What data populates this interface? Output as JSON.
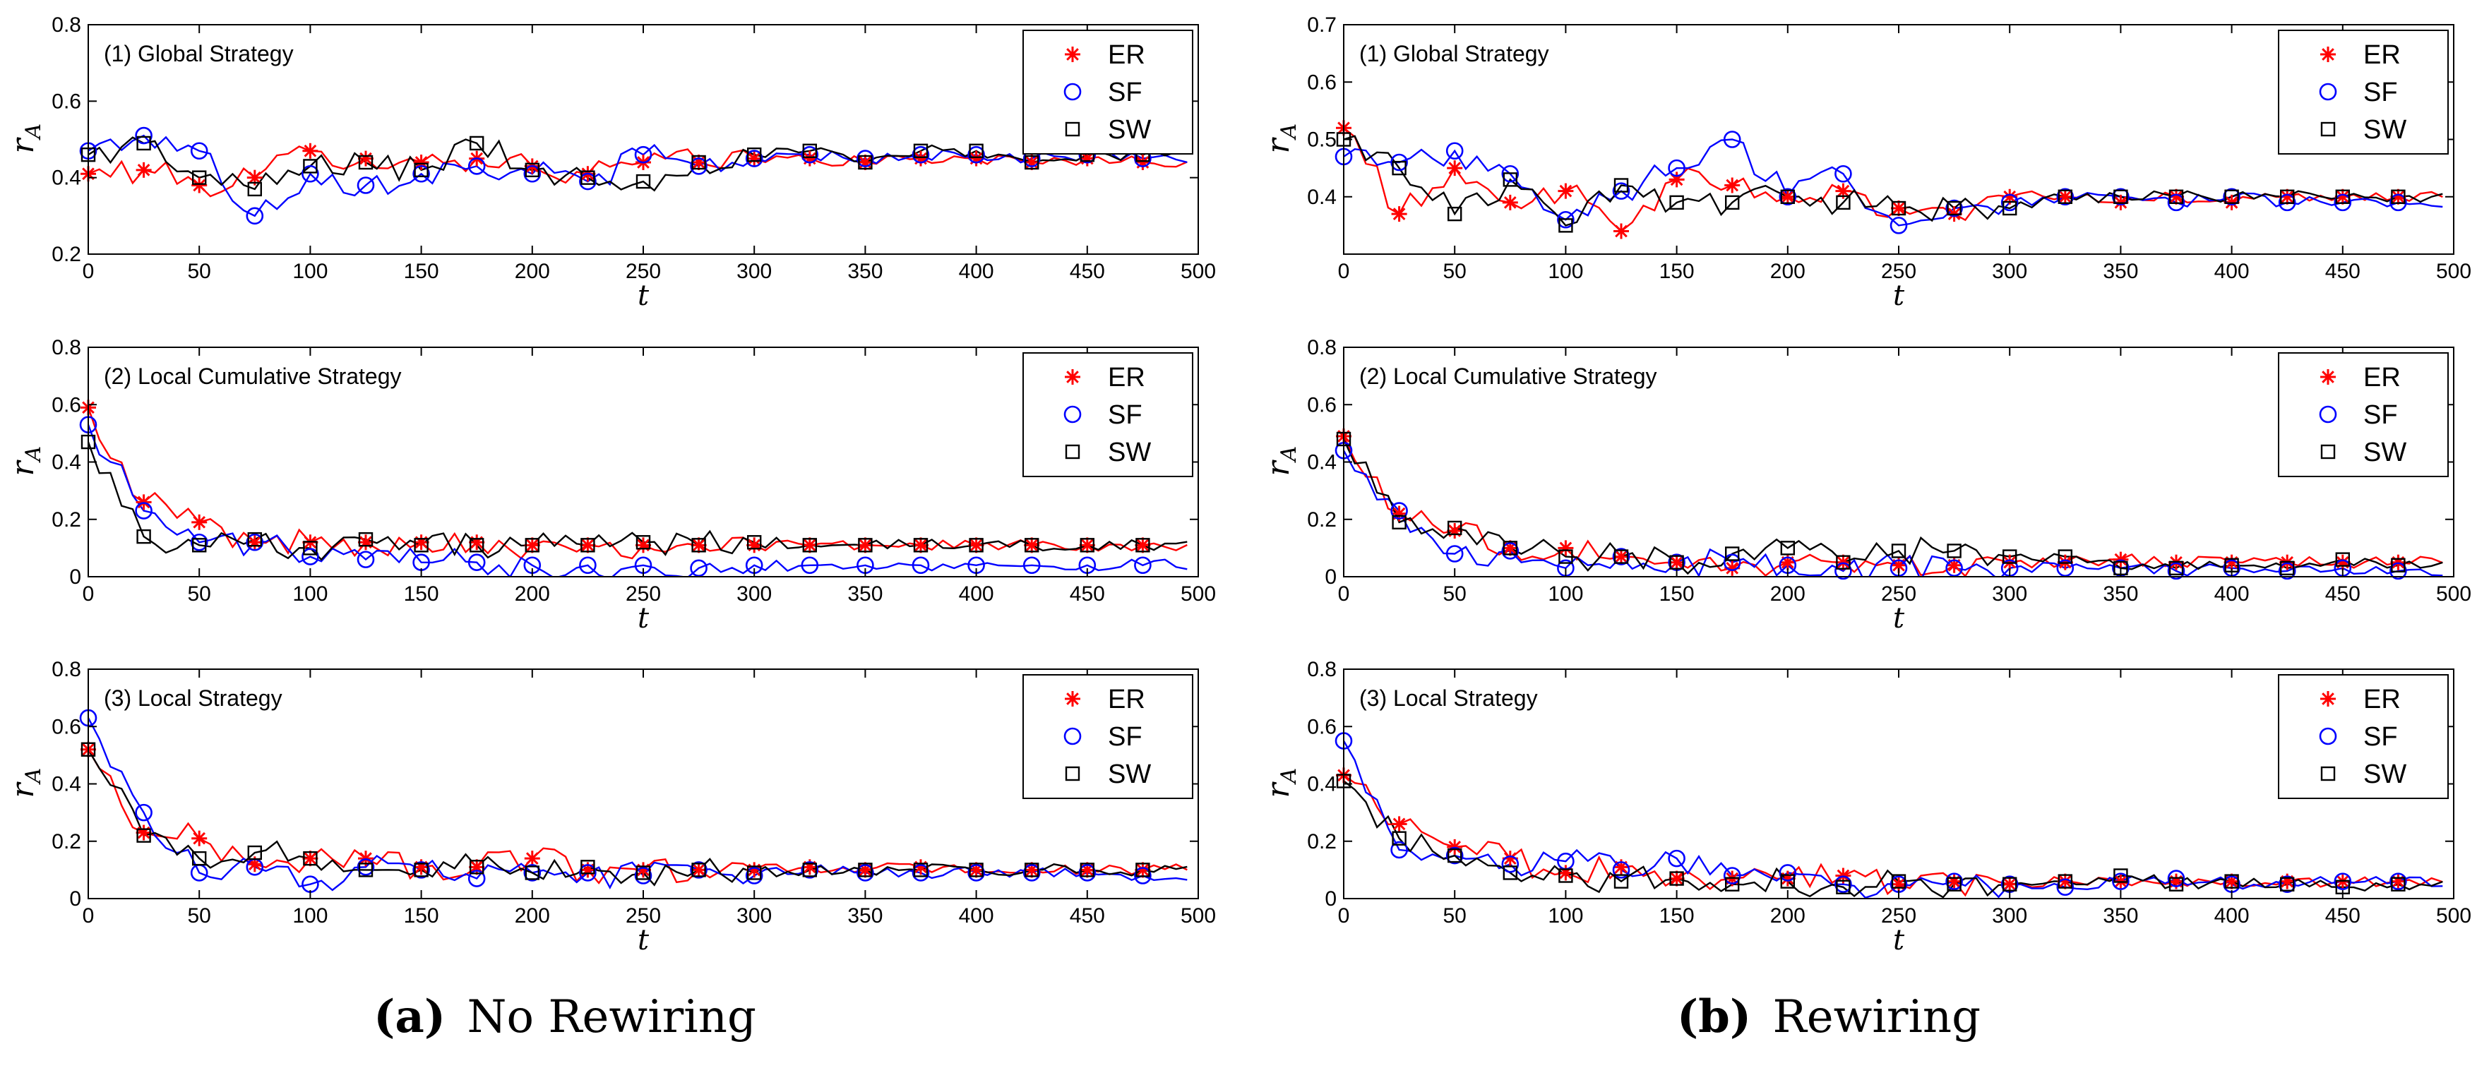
{
  "figure": {
    "captions": [
      {
        "letter": "a",
        "text": "No Rewiring"
      },
      {
        "letter": "b",
        "text": "Rewiring"
      }
    ]
  },
  "colors": {
    "ER": "#ff0000",
    "SF": "#0000ff",
    "SW": "#000000"
  },
  "chart_data": [
    {
      "type": "line",
      "title": "(1) Global Strategy",
      "column": 0,
      "row": 0,
      "xlabel": "t",
      "ylabel": "r",
      "ylabel_sub": "A",
      "xlim": [
        0,
        500
      ],
      "ylim": [
        0.2,
        0.8
      ],
      "xticks": [
        0,
        50,
        100,
        150,
        200,
        250,
        300,
        350,
        400,
        450,
        500
      ],
      "yticks": [
        0.2,
        0.4,
        0.6,
        0.8
      ],
      "legend": [
        "ER",
        "SF",
        "SW"
      ],
      "legend_loc": "top-right",
      "marker_x": [
        0,
        25,
        50,
        75,
        100,
        125,
        150,
        175,
        200,
        225,
        250,
        275,
        300,
        325,
        350,
        375,
        400,
        425,
        450,
        475
      ],
      "series": [
        {
          "name": "ER",
          "values": [
            0.41,
            0.42,
            0.38,
            0.4,
            0.47,
            0.45,
            0.44,
            0.45,
            0.43,
            0.41,
            0.44,
            0.44,
            0.45,
            0.45,
            0.44,
            0.45,
            0.45,
            0.44,
            0.45,
            0.44
          ]
        },
        {
          "name": "SF",
          "values": [
            0.47,
            0.51,
            0.47,
            0.3,
            0.41,
            0.38,
            0.41,
            0.43,
            0.41,
            0.39,
            0.46,
            0.43,
            0.45,
            0.46,
            0.45,
            0.46,
            0.46,
            0.45,
            0.46,
            0.45
          ]
        },
        {
          "name": "SW",
          "values": [
            0.46,
            0.49,
            0.4,
            0.37,
            0.43,
            0.44,
            0.42,
            0.49,
            0.42,
            0.4,
            0.39,
            0.44,
            0.46,
            0.47,
            0.44,
            0.47,
            0.47,
            0.44,
            0.46,
            0.46
          ]
        }
      ]
    },
    {
      "type": "line",
      "title": "(2) Local Cumulative Strategy",
      "column": 0,
      "row": 1,
      "xlabel": "t",
      "ylabel": "r",
      "ylabel_sub": "A",
      "xlim": [
        0,
        500
      ],
      "ylim": [
        0,
        0.8
      ],
      "xticks": [
        0,
        50,
        100,
        150,
        200,
        250,
        300,
        350,
        400,
        450,
        500
      ],
      "yticks": [
        0,
        0.2,
        0.4,
        0.6,
        0.8
      ],
      "legend": [
        "ER",
        "SF",
        "SW"
      ],
      "legend_loc": "top-right",
      "marker_x": [
        0,
        25,
        50,
        75,
        100,
        125,
        150,
        175,
        200,
        225,
        250,
        275,
        300,
        325,
        350,
        375,
        400,
        425,
        450,
        475
      ],
      "series": [
        {
          "name": "ER",
          "values": [
            0.59,
            0.26,
            0.19,
            0.12,
            0.12,
            0.12,
            0.12,
            0.12,
            0.11,
            0.11,
            0.11,
            0.11,
            0.11,
            0.11,
            0.11,
            0.11,
            0.11,
            0.11,
            0.11,
            0.11
          ]
        },
        {
          "name": "SF",
          "values": [
            0.53,
            0.23,
            0.12,
            0.12,
            0.07,
            0.06,
            0.05,
            0.05,
            0.04,
            0.04,
            0.04,
            0.03,
            0.04,
            0.04,
            0.04,
            0.04,
            0.04,
            0.04,
            0.04,
            0.04
          ]
        },
        {
          "name": "SW",
          "values": [
            0.47,
            0.14,
            0.11,
            0.13,
            0.1,
            0.13,
            0.11,
            0.11,
            0.11,
            0.11,
            0.12,
            0.11,
            0.12,
            0.11,
            0.11,
            0.11,
            0.11,
            0.11,
            0.11,
            0.11
          ]
        }
      ]
    },
    {
      "type": "line",
      "title": "(3) Local Strategy",
      "column": 0,
      "row": 2,
      "xlabel": "t",
      "ylabel": "r",
      "ylabel_sub": "A",
      "xlim": [
        0,
        500
      ],
      "ylim": [
        0,
        0.8
      ],
      "xticks": [
        0,
        50,
        100,
        150,
        200,
        250,
        300,
        350,
        400,
        450,
        500
      ],
      "yticks": [
        0,
        0.2,
        0.4,
        0.6,
        0.8
      ],
      "legend": [
        "ER",
        "SF",
        "SW"
      ],
      "legend_loc": "top-right",
      "marker_x": [
        0,
        25,
        50,
        75,
        100,
        125,
        150,
        175,
        200,
        225,
        250,
        275,
        300,
        325,
        350,
        375,
        400,
        425,
        450,
        475
      ],
      "series": [
        {
          "name": "ER",
          "values": [
            0.52,
            0.23,
            0.21,
            0.12,
            0.14,
            0.14,
            0.11,
            0.11,
            0.14,
            0.1,
            0.1,
            0.1,
            0.1,
            0.11,
            0.1,
            0.11,
            0.1,
            0.1,
            0.1,
            0.1
          ]
        },
        {
          "name": "SF",
          "values": [
            0.63,
            0.3,
            0.09,
            0.11,
            0.05,
            0.11,
            0.1,
            0.07,
            0.09,
            0.09,
            0.08,
            0.1,
            0.08,
            0.1,
            0.09,
            0.09,
            0.09,
            0.09,
            0.09,
            0.08
          ]
        },
        {
          "name": "SW",
          "values": [
            0.52,
            0.22,
            0.14,
            0.16,
            0.14,
            0.1,
            0.1,
            0.11,
            0.09,
            0.11,
            0.09,
            0.1,
            0.09,
            0.1,
            0.1,
            0.1,
            0.1,
            0.1,
            0.1,
            0.1
          ]
        }
      ]
    },
    {
      "type": "line",
      "title": "(1) Global Strategy",
      "column": 1,
      "row": 0,
      "xlabel": "t",
      "ylabel": "r",
      "ylabel_sub": "A",
      "xlim": [
        0,
        500
      ],
      "ylim": [
        0.3,
        0.7
      ],
      "xticks": [
        0,
        50,
        100,
        150,
        200,
        250,
        300,
        350,
        400,
        450,
        500
      ],
      "yticks": [
        0.4,
        0.5,
        0.6,
        0.7
      ],
      "legend": [
        "ER",
        "SF",
        "SW"
      ],
      "legend_loc": "top-right",
      "marker_x": [
        0,
        25,
        50,
        75,
        100,
        125,
        150,
        175,
        200,
        225,
        250,
        275,
        300,
        325,
        350,
        375,
        400,
        425,
        450,
        475
      ],
      "series": [
        {
          "name": "ER",
          "values": [
            0.52,
            0.37,
            0.45,
            0.39,
            0.41,
            0.34,
            0.43,
            0.42,
            0.4,
            0.41,
            0.38,
            0.37,
            0.4,
            0.4,
            0.39,
            0.4,
            0.39,
            0.4,
            0.4,
            0.4
          ]
        },
        {
          "name": "SF",
          "values": [
            0.47,
            0.46,
            0.48,
            0.44,
            0.36,
            0.41,
            0.45,
            0.5,
            0.4,
            0.44,
            0.35,
            0.38,
            0.39,
            0.4,
            0.4,
            0.39,
            0.4,
            0.39,
            0.39,
            0.39
          ]
        },
        {
          "name": "SW",
          "values": [
            0.5,
            0.45,
            0.37,
            0.43,
            0.35,
            0.42,
            0.39,
            0.39,
            0.4,
            0.39,
            0.38,
            0.38,
            0.38,
            0.4,
            0.4,
            0.4,
            0.4,
            0.4,
            0.4,
            0.4
          ]
        }
      ]
    },
    {
      "type": "line",
      "title": "(2) Local Cumulative Strategy",
      "column": 1,
      "row": 1,
      "xlabel": "t",
      "ylabel": "r",
      "ylabel_sub": "A",
      "xlim": [
        0,
        500
      ],
      "ylim": [
        0,
        0.8
      ],
      "xticks": [
        0,
        50,
        100,
        150,
        200,
        250,
        300,
        350,
        400,
        450,
        500
      ],
      "yticks": [
        0,
        0.2,
        0.4,
        0.6,
        0.8
      ],
      "legend": [
        "ER",
        "SF",
        "SW"
      ],
      "legend_loc": "top-right",
      "marker_x": [
        0,
        25,
        50,
        75,
        100,
        125,
        150,
        175,
        200,
        225,
        250,
        275,
        300,
        325,
        350,
        375,
        400,
        425,
        450,
        475
      ],
      "series": [
        {
          "name": "ER",
          "values": [
            0.49,
            0.22,
            0.16,
            0.1,
            0.1,
            0.07,
            0.05,
            0.03,
            0.05,
            0.05,
            0.04,
            0.04,
            0.05,
            0.05,
            0.06,
            0.05,
            0.05,
            0.05,
            0.05,
            0.05
          ]
        },
        {
          "name": "SF",
          "values": [
            0.44,
            0.23,
            0.08,
            0.09,
            0.03,
            0.07,
            0.05,
            0.05,
            0.04,
            0.02,
            0.03,
            0.03,
            0.03,
            0.03,
            0.03,
            0.02,
            0.03,
            0.02,
            0.03,
            0.02
          ]
        },
        {
          "name": "SW",
          "values": [
            0.48,
            0.19,
            0.17,
            0.1,
            0.07,
            0.07,
            0.05,
            0.08,
            0.1,
            0.05,
            0.09,
            0.09,
            0.07,
            0.07,
            0.03,
            0.03,
            0.04,
            0.03,
            0.06,
            0.04
          ]
        }
      ]
    },
    {
      "type": "line",
      "title": "(3) Local Strategy",
      "column": 1,
      "row": 2,
      "xlabel": "t",
      "ylabel": "r",
      "ylabel_sub": "A",
      "xlim": [
        0,
        500
      ],
      "ylim": [
        0,
        0.8
      ],
      "xticks": [
        0,
        50,
        100,
        150,
        200,
        250,
        300,
        350,
        400,
        450,
        500
      ],
      "yticks": [
        0,
        0.2,
        0.4,
        0.6,
        0.8
      ],
      "legend": [
        "ER",
        "SF",
        "SW"
      ],
      "legend_loc": "top-right",
      "marker_x": [
        0,
        25,
        50,
        75,
        100,
        125,
        150,
        175,
        200,
        225,
        250,
        275,
        300,
        325,
        350,
        375,
        400,
        425,
        450,
        475
      ],
      "series": [
        {
          "name": "ER",
          "values": [
            0.43,
            0.26,
            0.18,
            0.14,
            0.09,
            0.11,
            0.07,
            0.07,
            0.07,
            0.08,
            0.05,
            0.06,
            0.05,
            0.06,
            0.06,
            0.06,
            0.06,
            0.06,
            0.06,
            0.06
          ]
        },
        {
          "name": "SF",
          "values": [
            0.55,
            0.17,
            0.15,
            0.12,
            0.13,
            0.1,
            0.14,
            0.08,
            0.09,
            0.05,
            0.05,
            0.06,
            0.05,
            0.04,
            0.06,
            0.07,
            0.05,
            0.05,
            0.06,
            0.06
          ]
        },
        {
          "name": "SW",
          "values": [
            0.41,
            0.21,
            0.15,
            0.09,
            0.08,
            0.06,
            0.07,
            0.05,
            0.06,
            0.04,
            0.06,
            0.05,
            0.05,
            0.06,
            0.08,
            0.05,
            0.06,
            0.05,
            0.04,
            0.05
          ]
        }
      ]
    }
  ]
}
